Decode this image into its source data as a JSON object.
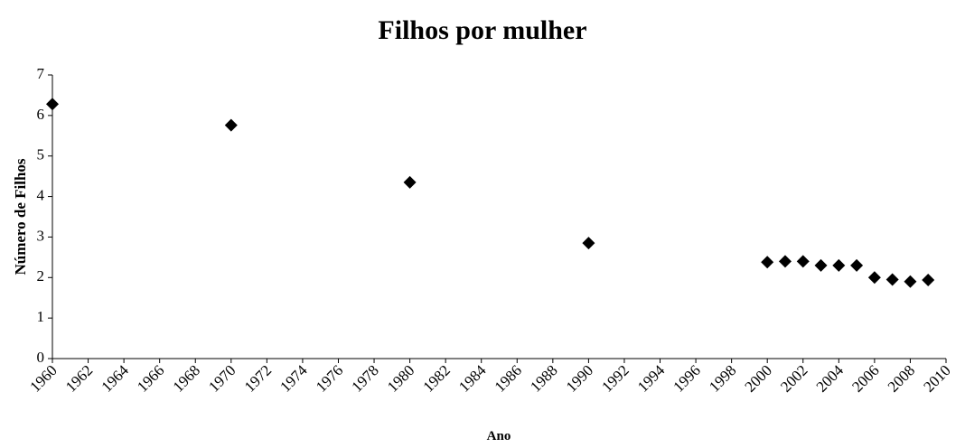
{
  "chart_data": {
    "type": "scatter",
    "title": "Filhos por mulher",
    "xlabel": "Ano",
    "ylabel": "Número de Filhos",
    "x": [
      1960,
      1970,
      1980,
      1990,
      2000,
      2001,
      2002,
      2003,
      2004,
      2005,
      2006,
      2007,
      2008,
      2009
    ],
    "series": [
      {
        "name": "Filhos",
        "color": "#000000",
        "values": [
          6.28,
          5.76,
          4.35,
          2.85,
          2.38,
          2.4,
          2.4,
          2.3,
          2.3,
          2.3,
          2.0,
          1.95,
          1.9,
          1.94
        ]
      }
    ],
    "xlim": [
      1960,
      2010
    ],
    "xticks": [
      1960,
      1962,
      1964,
      1966,
      1968,
      1970,
      1972,
      1974,
      1976,
      1978,
      1980,
      1982,
      1984,
      1986,
      1988,
      1990,
      1992,
      1994,
      1996,
      1998,
      2000,
      2002,
      2004,
      2006,
      2008,
      2010
    ],
    "ylim": [
      0,
      7
    ],
    "yticks": [
      0,
      1,
      2,
      3,
      4,
      5,
      6,
      7
    ],
    "grid": false,
    "marker": "diamond"
  }
}
